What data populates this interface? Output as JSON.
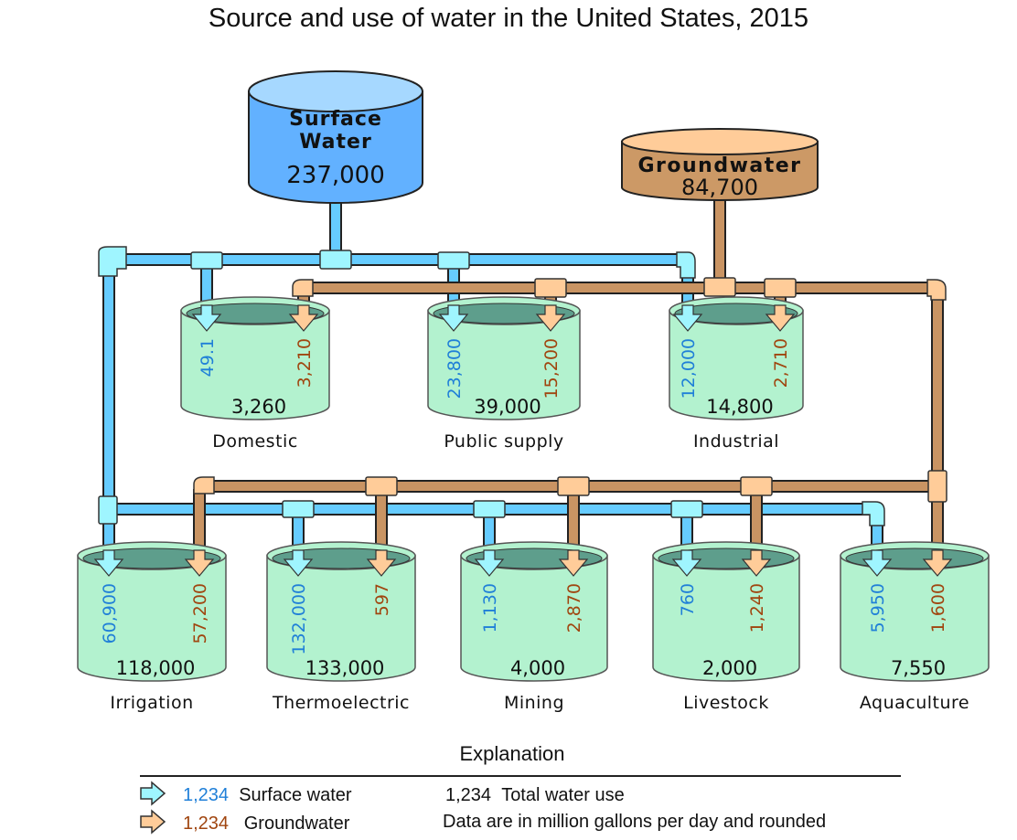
{
  "title": "Source and use of water in the United States, 2015",
  "sources": {
    "surface": {
      "label_line1": "Surface",
      "label_line2": "Water",
      "value": "237,000"
    },
    "ground": {
      "label": "Groundwater",
      "value": "84,700"
    }
  },
  "uses": [
    {
      "name": "Domestic",
      "surface": "49.1",
      "ground": "3,210",
      "total": "3,260"
    },
    {
      "name": "Public supply",
      "surface": "23,800",
      "ground": "15,200",
      "total": "39,000"
    },
    {
      "name": "Industrial",
      "surface": "12,000",
      "ground": "2,710",
      "total": "14,800"
    },
    {
      "name": "Irrigation",
      "surface": "60,900",
      "ground": "57,200",
      "total": "118,000"
    },
    {
      "name": "Thermoelectric",
      "surface": "132,000",
      "ground": "597",
      "total": "133,000"
    },
    {
      "name": "Mining",
      "surface": "1,130",
      "ground": "2,870",
      "total": "4,000"
    },
    {
      "name": "Livestock",
      "surface": "760",
      "ground": "1,240",
      "total": "2,000"
    },
    {
      "name": "Aquaculture",
      "surface": "5,950",
      "ground": "1,600",
      "total": "7,550"
    }
  ],
  "legend": {
    "title": "Explanation",
    "surface_sample": "1,234",
    "surface_label": "Surface water",
    "ground_sample": "1,234",
    "ground_label": "Groundwater",
    "total_sample": "1,234",
    "total_label": "Total water use",
    "note": "Data are in million gallons per day and rounded"
  },
  "colors": {
    "surface_tank": "#62b1ff",
    "surface_tank_top": "#a6d8ff",
    "surface_pipe": "#66ccff",
    "surface_fitting": "#9ff5ff",
    "ground_tank": "#cc9966",
    "ground_tank_top": "#ffcc99",
    "ground_pipe": "#c99463",
    "ground_fitting": "#ffcc99",
    "use_tank": "#b3f2cf",
    "use_tank_water": "#5e9e8c",
    "surface_text": "#1f7fd8",
    "ground_text": "#a0450f"
  },
  "chart_data": {
    "type": "table",
    "title": "Source and use of water in the United States, 2015",
    "units": "million gallons per day",
    "sources": {
      "Surface water": 237000,
      "Groundwater": 84700
    },
    "categories": [
      "Domestic",
      "Public supply",
      "Industrial",
      "Irrigation",
      "Thermoelectric",
      "Mining",
      "Livestock",
      "Aquaculture"
    ],
    "series": [
      {
        "name": "Surface water",
        "values": [
          49.1,
          23800,
          12000,
          60900,
          132000,
          1130,
          760,
          5950
        ]
      },
      {
        "name": "Groundwater",
        "values": [
          3210,
          15200,
          2710,
          57200,
          597,
          2870,
          1240,
          1600
        ]
      },
      {
        "name": "Total water use",
        "values": [
          3260,
          39000,
          14800,
          118000,
          133000,
          4000,
          2000,
          7550
        ]
      }
    ]
  }
}
